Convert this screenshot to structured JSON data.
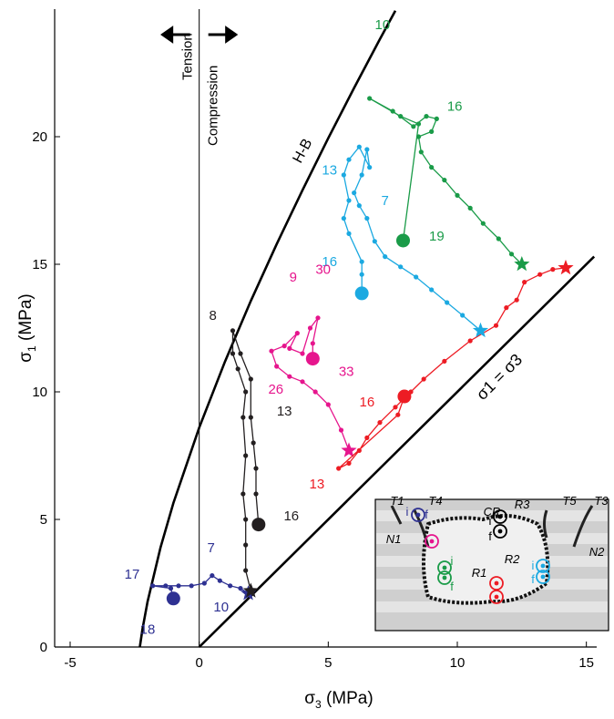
{
  "chart_data": {
    "type": "scatter",
    "xlabel": {
      "symbol": "σ",
      "sub": "3",
      "unit": " (MPa)"
    },
    "ylabel": {
      "symbol": "σ",
      "sub": "1",
      "unit": " (MPa)"
    },
    "xlim": [
      -5.6,
      15.4
    ],
    "ylim": [
      0,
      25
    ],
    "xticks": [
      -5,
      0,
      5,
      10,
      15
    ],
    "yticks": [
      0,
      5,
      10,
      15,
      20
    ],
    "vline": 0,
    "side_labels": [
      "Tension",
      "Compression"
    ],
    "curves": [
      {
        "label": "H-B",
        "x": [
          -2.3,
          -2.2,
          -2,
          -1.5,
          -1,
          0,
          1,
          2,
          3,
          4,
          5,
          6,
          7,
          7.6
        ],
        "values": [
          0,
          0.68,
          1.78,
          3.9,
          5.64,
          8.6,
          11.19,
          13.56,
          15.79,
          17.9,
          19.94,
          21.91,
          23.82,
          24.94
        ]
      },
      {
        "label": "σ1 = σ3",
        "x": [
          0,
          15.3
        ],
        "values": [
          0,
          15.3
        ]
      }
    ],
    "series": [
      {
        "color": "#2e3192",
        "x": [
          1.9,
          1.6,
          1.2,
          0.8,
          0.5,
          0.2,
          -0.3,
          -0.8,
          -1.3,
          -1.8,
          -1.1,
          -1.0
        ],
        "values": [
          2.1,
          2.3,
          2.4,
          2.6,
          2.8,
          2.5,
          2.4,
          2.4,
          2.4,
          2.4,
          2.3,
          1.9
        ]
      },
      {
        "color": "#231f20",
        "x": [
          2.0,
          1.8,
          1.8,
          1.8,
          1.7,
          1.8,
          1.7,
          1.8,
          1.5,
          1.3,
          1.3,
          1.6,
          2.0,
          2.0,
          2.1,
          2.2,
          2.2,
          2.3
        ],
        "values": [
          2.2,
          3,
          4,
          5,
          6,
          7.5,
          9,
          10,
          10.9,
          11.5,
          12.4,
          11.5,
          10.5,
          9,
          8,
          7,
          6,
          4.8
        ]
      },
      {
        "color": "#e6158d",
        "x": [
          5.8,
          5.5,
          5.0,
          4.5,
          4.0,
          3.5,
          3.0,
          2.8,
          3.3,
          3.8,
          3.5,
          4.0,
          4.3,
          4.6,
          4.4,
          4.4
        ],
        "values": [
          7.7,
          8.5,
          9.5,
          10,
          10.4,
          10.6,
          11,
          11.6,
          11.8,
          12.3,
          11.7,
          11.5,
          12.5,
          12.9,
          11.9,
          11.3
        ]
      },
      {
        "color": "#ed1c24",
        "x": [
          14.2,
          13.7,
          13.2,
          12.6,
          12.3,
          11.9,
          11.5,
          10.5,
          9.5,
          8.7,
          8.2,
          7.6,
          7.0,
          6.5,
          6.2,
          5.8,
          5.4,
          7.7,
          7.95
        ],
        "values": [
          14.86,
          14.8,
          14.6,
          14.3,
          13.6,
          13.3,
          12.6,
          12.0,
          11.2,
          10.5,
          10.0,
          9.4,
          8.8,
          8.2,
          7.7,
          7.2,
          7.0,
          9.1,
          9.82
        ]
      },
      {
        "color": "#1ba9e1",
        "x": [
          10.9,
          10.2,
          9.6,
          9.0,
          8.4,
          7.8,
          7.2,
          6.8,
          6.5,
          6.2,
          6.0,
          6.3,
          6.5,
          6.6,
          6.2,
          5.8,
          5.6,
          5.8,
          5.6,
          5.8,
          6.3,
          6.3,
          6.3
        ],
        "values": [
          12.4,
          13,
          13.5,
          14,
          14.5,
          14.9,
          15.3,
          15.9,
          16.8,
          17.3,
          17.8,
          18.5,
          19.5,
          18.8,
          19.6,
          19.1,
          18.5,
          17.5,
          16.8,
          16.2,
          15.1,
          14.6,
          13.86
        ]
      },
      {
        "color": "#1a9b48",
        "x": [
          12.5,
          12.1,
          11.6,
          11.0,
          10.5,
          10.0,
          9.5,
          9.0,
          8.6,
          8.5,
          9.0,
          9.2,
          8.8,
          8.3,
          7.5,
          6.6,
          7.8,
          8.5,
          7.9
        ],
        "values": [
          15.0,
          15.4,
          16,
          16.6,
          17.2,
          17.7,
          18.3,
          18.8,
          19.4,
          20,
          20.2,
          20.7,
          20.8,
          20.4,
          21,
          21.5,
          20.8,
          20.5,
          15.93
        ]
      }
    ],
    "annotations": [
      {
        "text": "10",
        "color": "#1a9b48",
        "x": 7.1,
        "y": 24.4
      },
      {
        "text": "16",
        "color": "#1a9b48",
        "x": 9.9,
        "y": 21.2
      },
      {
        "text": "19",
        "color": "#1a9b48",
        "x": 9.2,
        "y": 16.1
      },
      {
        "text": "13",
        "color": "#1ba9e1",
        "x": 5.05,
        "y": 18.7
      },
      {
        "text": "7",
        "color": "#1ba9e1",
        "x": 7.2,
        "y": 17.5
      },
      {
        "text": "16",
        "color": "#1ba9e1",
        "x": 5.05,
        "y": 15.1
      },
      {
        "text": "9",
        "color": "#e6158d",
        "x": 3.64,
        "y": 14.5
      },
      {
        "text": "30",
        "color": "#e6158d",
        "x": 4.8,
        "y": 14.8
      },
      {
        "text": "26",
        "color": "#e6158d",
        "x": 2.97,
        "y": 10.1
      },
      {
        "text": "33",
        "color": "#e6158d",
        "x": 5.7,
        "y": 10.8
      },
      {
        "text": "16",
        "color": "#ed1c24",
        "x": 6.5,
        "y": 9.6
      },
      {
        "text": "13",
        "color": "#ed1c24",
        "x": 4.56,
        "y": 6.4
      },
      {
        "text": "8",
        "color": "#231f20",
        "x": 0.53,
        "y": 13.0
      },
      {
        "text": "13",
        "color": "#231f20",
        "x": 3.3,
        "y": 9.25
      },
      {
        "text": "16",
        "color": "#231f20",
        "x": 3.57,
        "y": 5.14
      },
      {
        "text": "17",
        "color": "#2e3192",
        "x": -2.6,
        "y": 2.86
      },
      {
        "text": "7",
        "color": "#2e3192",
        "x": 0.46,
        "y": 3.9
      },
      {
        "text": "10",
        "color": "#2e3192",
        "x": 0.85,
        "y": 1.57
      },
      {
        "text": "18",
        "color": "#2e3192",
        "x": -2.0,
        "y": 0.7
      }
    ],
    "inset": {
      "labels": [
        "T1",
        "T4",
        "CR",
        "R3",
        "T5",
        "T3",
        "N1",
        "R2",
        "N2",
        "R1",
        "i",
        "f",
        "i",
        "f",
        "i",
        "f",
        "i",
        "f"
      ]
    }
  }
}
